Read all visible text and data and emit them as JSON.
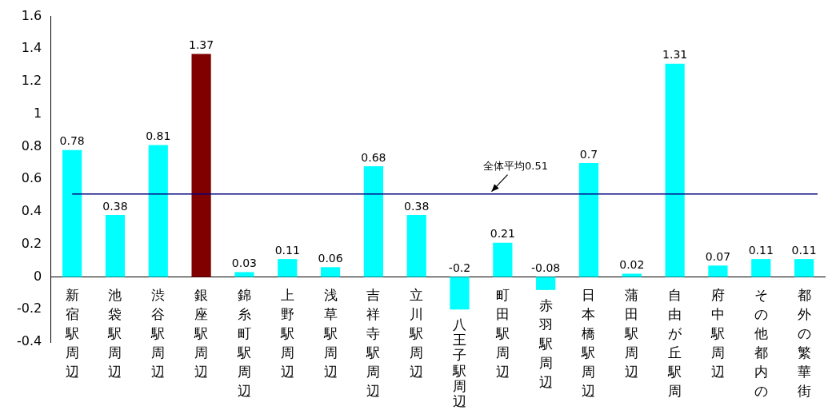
{
  "chart_data": {
    "type": "bar",
    "categories": [
      "新宿駅周辺",
      "池袋駅周辺",
      "渋谷駅周辺",
      "銀座駅周辺",
      "錦糸町駅周辺",
      "上野駅周辺",
      "浅草駅周辺",
      "吉祥寺駅周辺",
      "立川駅周辺",
      "八王子駅周辺",
      "町田駅周辺",
      "赤羽駅周辺",
      "日本橋駅周辺",
      "蒲田駅周辺",
      "自由が丘駅周",
      "府中駅周辺",
      "その他都内の",
      "都外の繁華街"
    ],
    "values": [
      0.78,
      0.38,
      0.81,
      1.37,
      0.03,
      0.11,
      0.06,
      0.68,
      0.38,
      -0.2,
      0.21,
      -0.08,
      0.7,
      0.02,
      1.31,
      0.07,
      0.11,
      0.11
    ],
    "colors": [
      "#00ffff",
      "#00ffff",
      "#00ffff",
      "#800000",
      "#00ffff",
      "#00ffff",
      "#00ffff",
      "#00ffff",
      "#00ffff",
      "#00ffff",
      "#00ffff",
      "#00ffff",
      "#00ffff",
      "#00ffff",
      "#00ffff",
      "#00ffff",
      "#00ffff",
      "#00ffff"
    ],
    "data_labels": true,
    "ylim": [
      -0.4,
      1.6
    ],
    "yticks": [
      -0.4,
      -0.2,
      0,
      0.2,
      0.4,
      0.6,
      0.8,
      1,
      1.2,
      1.4,
      1.6
    ],
    "ref_lines": [
      {
        "axis": "y",
        "value": 0.51,
        "label": "全体平均0.51",
        "color": "#000080"
      }
    ],
    "grid": false,
    "legend": false
  }
}
